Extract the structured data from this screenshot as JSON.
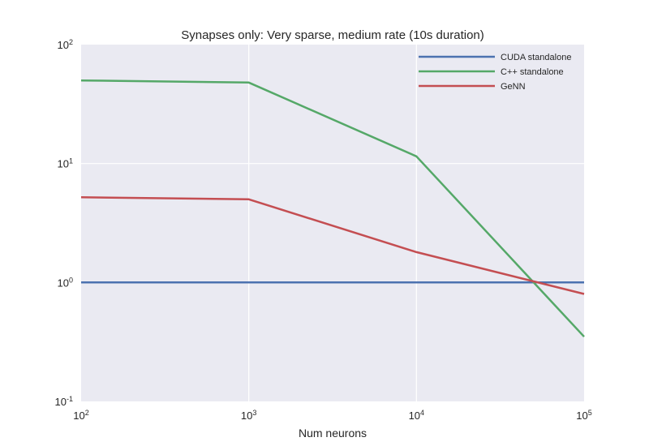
{
  "chart_data": {
    "type": "line",
    "title": "Synapses only: Very sparse, medium rate (10s duration)",
    "xlabel": "Num neurons",
    "ylabel": "",
    "xscale": "log",
    "yscale": "log",
    "x": [
      100,
      1000,
      10000,
      100000
    ],
    "xlim": [
      100,
      100000
    ],
    "ylim": [
      0.1,
      100
    ],
    "x_ticks": [
      {
        "base": "10",
        "exp": "2"
      },
      {
        "base": "10",
        "exp": "3"
      },
      {
        "base": "10",
        "exp": "4"
      },
      {
        "base": "10",
        "exp": "5"
      }
    ],
    "y_ticks": [
      {
        "base": "10",
        "exp": "-1"
      },
      {
        "base": "10",
        "exp": "0"
      },
      {
        "base": "10",
        "exp": "1"
      },
      {
        "base": "10",
        "exp": "2"
      }
    ],
    "grid": true,
    "legend_position": "top-right",
    "series": [
      {
        "name": "CUDA standalone",
        "color": "#4c72b0",
        "values": [
          1.0,
          1.0,
          1.0,
          1.0
        ]
      },
      {
        "name": "C++ standalone",
        "color": "#55a868",
        "values": [
          50,
          48,
          11.5,
          0.35
        ]
      },
      {
        "name": "GeNN",
        "color": "#c44e52",
        "values": [
          5.2,
          5.0,
          1.8,
          0.8
        ]
      }
    ]
  }
}
